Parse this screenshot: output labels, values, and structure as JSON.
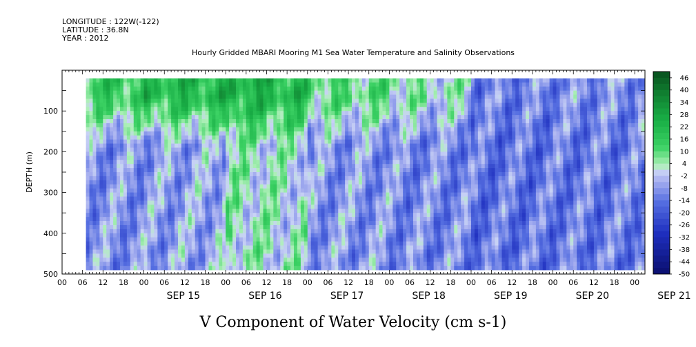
{
  "header": {
    "longitude": "LONGITUDE : 122W(-122)",
    "latitude": "LATITUDE : 36.8N",
    "year": "YEAR : 2012",
    "title": "Hourly Gridded MBARI Mooring M1 Sea Water Temperature and Salinity Observations"
  },
  "chart_data": {
    "type": "heatmap",
    "title": "Hourly Gridded MBARI Mooring M1 Sea Water Temperature and Salinity Observations",
    "xlabel": "",
    "ylabel": "DEPTH (m)",
    "variable_label": "V Component of Water Velocity (cm s-1)",
    "x_range": [
      "SEP 14 00",
      "SEP 21 ~03"
    ],
    "ylim": [
      500,
      0
    ],
    "y_inverted": true,
    "y_ticks": [
      100,
      200,
      300,
      400,
      500
    ],
    "x_hour_ticks": [
      "00",
      "06",
      "12",
      "18",
      "00",
      "06",
      "12",
      "18",
      "00",
      "06",
      "12",
      "18",
      "00",
      "06",
      "12",
      "18",
      "00",
      "06",
      "12",
      "18",
      "00",
      "06",
      "12",
      "18",
      "00",
      "06",
      "12",
      "18",
      "00"
    ],
    "x_date_labels": [
      "SEP 15",
      "SEP 16",
      "SEP 17",
      "SEP 18",
      "SEP 19",
      "SEP 20",
      "SEP 21"
    ],
    "data_depth_range": [
      20,
      485
    ],
    "data_start": "SEP 14 ~07",
    "colorbar": {
      "ticks": [
        46,
        40,
        34,
        28,
        22,
        16,
        10,
        4,
        -2,
        -8,
        -14,
        -20,
        -26,
        -32,
        -38,
        -44,
        -50
      ],
      "range": [
        -50,
        49
      ]
    },
    "series": [
      {
        "day": "SEP 14 (late)",
        "upper_0_100m": 14,
        "deep_100_480m": -9
      },
      {
        "day": "SEP 15",
        "upper_0_100m": 20,
        "deep_100_480m": -8
      },
      {
        "day": "SEP 16",
        "upper_0_100m": 24,
        "deep_100_480m": 4
      },
      {
        "day": "SEP 17",
        "upper_0_100m": 10,
        "deep_100_480m": -8
      },
      {
        "day": "SEP 18",
        "upper_0_100m": 6,
        "deep_100_480m": -10
      },
      {
        "day": "SEP 19",
        "upper_0_100m": -12,
        "deep_100_480m": -14
      },
      {
        "day": "SEP 20",
        "upper_0_100m": -10,
        "deep_100_480m": -13
      },
      {
        "day": "SEP 21",
        "upper_0_100m": -8,
        "deep_100_480m": -12
      }
    ],
    "grid": false
  },
  "colors": {
    "positive_strong": "#0b6b2a",
    "positive": "#21c653",
    "near_zero_pos": "#a9f0b4",
    "near_zero_neg": "#b7bdf2",
    "negative": "#6d7fe8",
    "negative_strong": "#1e2fbf",
    "negative_extreme": "#0a0f6e"
  }
}
